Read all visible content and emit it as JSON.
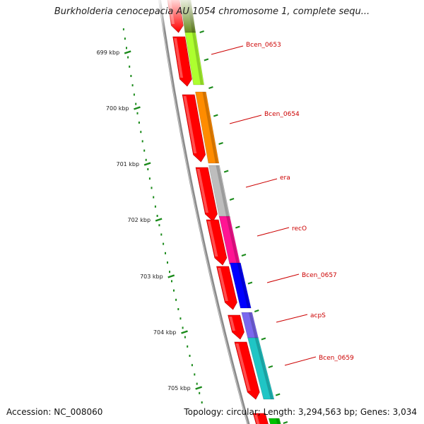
{
  "title": "Burkholderia cenocepacia AU 1054 chromosome 1, complete sequ...",
  "accession": "Accession: NC_008060",
  "summary": "Topology: circular; Length: 3,294,563 bp; Genes: 3,034",
  "ruler_ticks": [
    "699 kbp",
    "700 kbp",
    "701 kbp",
    "702 kbp",
    "703 kbp",
    "704 kbp",
    "705 kbp"
  ],
  "genes": [
    {
      "label": "",
      "color": "#6b8e23"
    },
    {
      "label": "Bcen_0653",
      "color": "#adff2f"
    },
    {
      "label": "Bcen_0654",
      "color": "#ff8c00"
    },
    {
      "label": "era",
      "color": "#bdbdbd"
    },
    {
      "label": "recO",
      "color": "#ff1493"
    },
    {
      "label": "Bcen_0657",
      "color": "#0000ff"
    },
    {
      "label": "acpS",
      "color": "#7b68ee"
    },
    {
      "label": "Bcen_0659",
      "color": "#20c5c5"
    },
    {
      "label": "",
      "color": "#00c000"
    }
  ]
}
